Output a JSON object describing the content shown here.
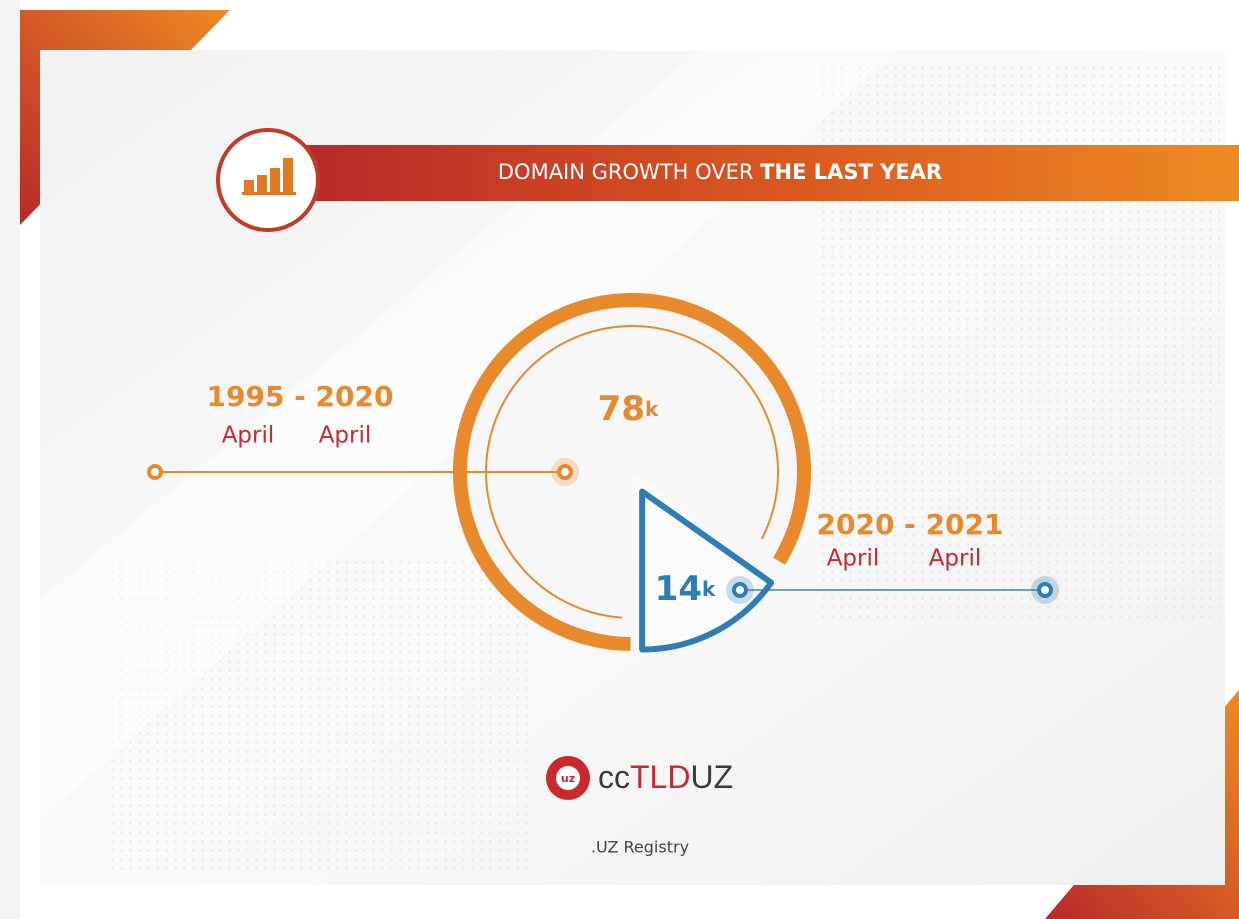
{
  "chart_data": {
    "type": "pie",
    "title": "DOMAIN GROWTH OVER",
    "title_emphasis": "THE LAST YEAR",
    "categories": [
      {
        "range": "1995 - 2020",
        "months": [
          "April",
          "April"
        ]
      },
      {
        "range": "2020 - 2021",
        "months": [
          "April",
          "April"
        ]
      }
    ],
    "values": [
      78000,
      14000
    ],
    "value_labels": [
      "78k",
      "14k"
    ],
    "colors": [
      "#e8892c",
      "#2f7db5"
    ]
  },
  "footer": {
    "logo_badge": "uz",
    "logo": [
      "cc",
      "TLD",
      "UZ"
    ],
    "caption": ".UZ Registry"
  }
}
